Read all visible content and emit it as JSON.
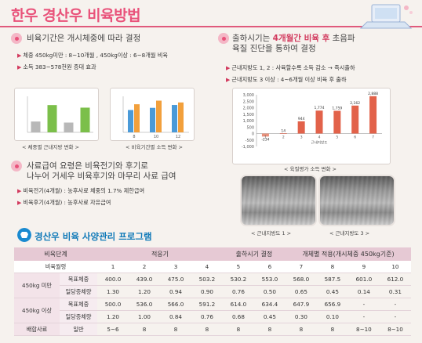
{
  "title": "한우 경산우 비육방법",
  "colors": {
    "accent": "#e9527a",
    "blue": "#1a8ad0",
    "bar_gray": "#b8b8b8",
    "bar_green": "#7bbf4a",
    "bar_blue": "#4a9ad8",
    "bar_orange": "#f2a03c",
    "bar_red": "#e2624a"
  },
  "section1": {
    "heading": "비육기간은 개시체중에 따라 결정",
    "bullets": [
      "체중 450kg미만 : 8~10개월 , 450kg이상 : 6~8개월 비육",
      "소득 383~578천원 증대 효과"
    ],
    "chart1_caption": "< 체중별 근내지방 변화 >",
    "chart2_caption": "< 비육기간별 소득 변화 >"
  },
  "section2": {
    "heading_pre": "출하시기는",
    "heading_em": "4개월간 비육 후",
    "heading_post": "초음파",
    "heading_line2": "육질 진단을 통하여 결정",
    "bullets": [
      "근내지방도 1, 2 : 사육할수록 소득 감소 → 즉시출하",
      "근내지방도 3 이상 : 4~6개월 이상 비육 후 출하"
    ],
    "chart_caption": "< 육질평가 소득 변화 >"
  },
  "chart_data": [
    {
      "type": "bar",
      "title": "",
      "categories": [
        "",
        "",
        "",
        ""
      ],
      "series": [
        {
          "name": "",
          "values": [
            2.1,
            5.3,
            1.9,
            4.8
          ]
        }
      ],
      "ylim": [
        0,
        7
      ]
    },
    {
      "type": "bar",
      "title": "",
      "categories": [
        "8",
        "10",
        "12"
      ],
      "series": [
        {
          "name": "",
          "values": [
            620,
            680,
            760
          ]
        },
        {
          "name": "",
          "values": [
            780,
            880,
            830
          ]
        }
      ],
      "ylim": [
        0,
        1000
      ]
    },
    {
      "type": "bar",
      "title": "",
      "xlabel": "근내지방도",
      "categories": [
        "1",
        "2",
        "3",
        "4",
        "5",
        "6",
        "7"
      ],
      "values": [
        -234,
        14,
        944,
        1774,
        1759,
        2162,
        2888
      ],
      "yticks": [
        "3,000",
        "2,500",
        "2,000",
        "1,500",
        "1,000",
        "500",
        "0",
        "-500",
        "-1,000"
      ],
      "ylim": [
        -1000,
        3000
      ]
    }
  ],
  "ultrasound": {
    "caption1": "< 근내지방도 1 >",
    "caption2": "< 근내지방도 3 >"
  },
  "program": {
    "title": "경산우 비육 사양관리 프로그램",
    "head": [
      "비육단계",
      "적응기",
      "출하시기 결정",
      "개체별 적용(개시체중 450kg기준)"
    ],
    "month_label": "비육월령",
    "months": [
      "1",
      "2",
      "3",
      "4",
      "5",
      "6",
      "7",
      "8",
      "9",
      "10"
    ],
    "groups": [
      {
        "label": "450kg 미만",
        "rows": [
          {
            "label": "목표체중",
            "values": [
              "400.0",
              "439.0",
              "475.0",
              "503.2",
              "530.2",
              "553.0",
              "568.0",
              "587.5",
              "601.0",
              "612.0"
            ]
          },
          {
            "label": "일당증체량",
            "values": [
              "1.30",
              "1.20",
              "0.94",
              "0.90",
              "0.76",
              "0.50",
              "0.65",
              "0.45",
              "0.14",
              "0.31"
            ]
          }
        ]
      },
      {
        "label": "450kg 이상",
        "rows": [
          {
            "label": "목표체중",
            "values": [
              "500.0",
              "536.0",
              "566.0",
              "591.2",
              "614.0",
              "634.4",
              "647.9",
              "656.9",
              "-",
              "-"
            ]
          },
          {
            "label": "일당증체량",
            "values": [
              "1.20",
              "1.00",
              "0.84",
              "0.76",
              "0.68",
              "0.45",
              "0.30",
              "0.10",
              "-",
              "-"
            ]
          }
        ]
      }
    ],
    "last_row": {
      "label": "배합사료",
      "sub": "일반",
      "values": [
        "5~6",
        "8",
        "8",
        "8",
        "8",
        "8",
        "8",
        "8",
        "8~10",
        "8~10"
      ]
    }
  }
}
